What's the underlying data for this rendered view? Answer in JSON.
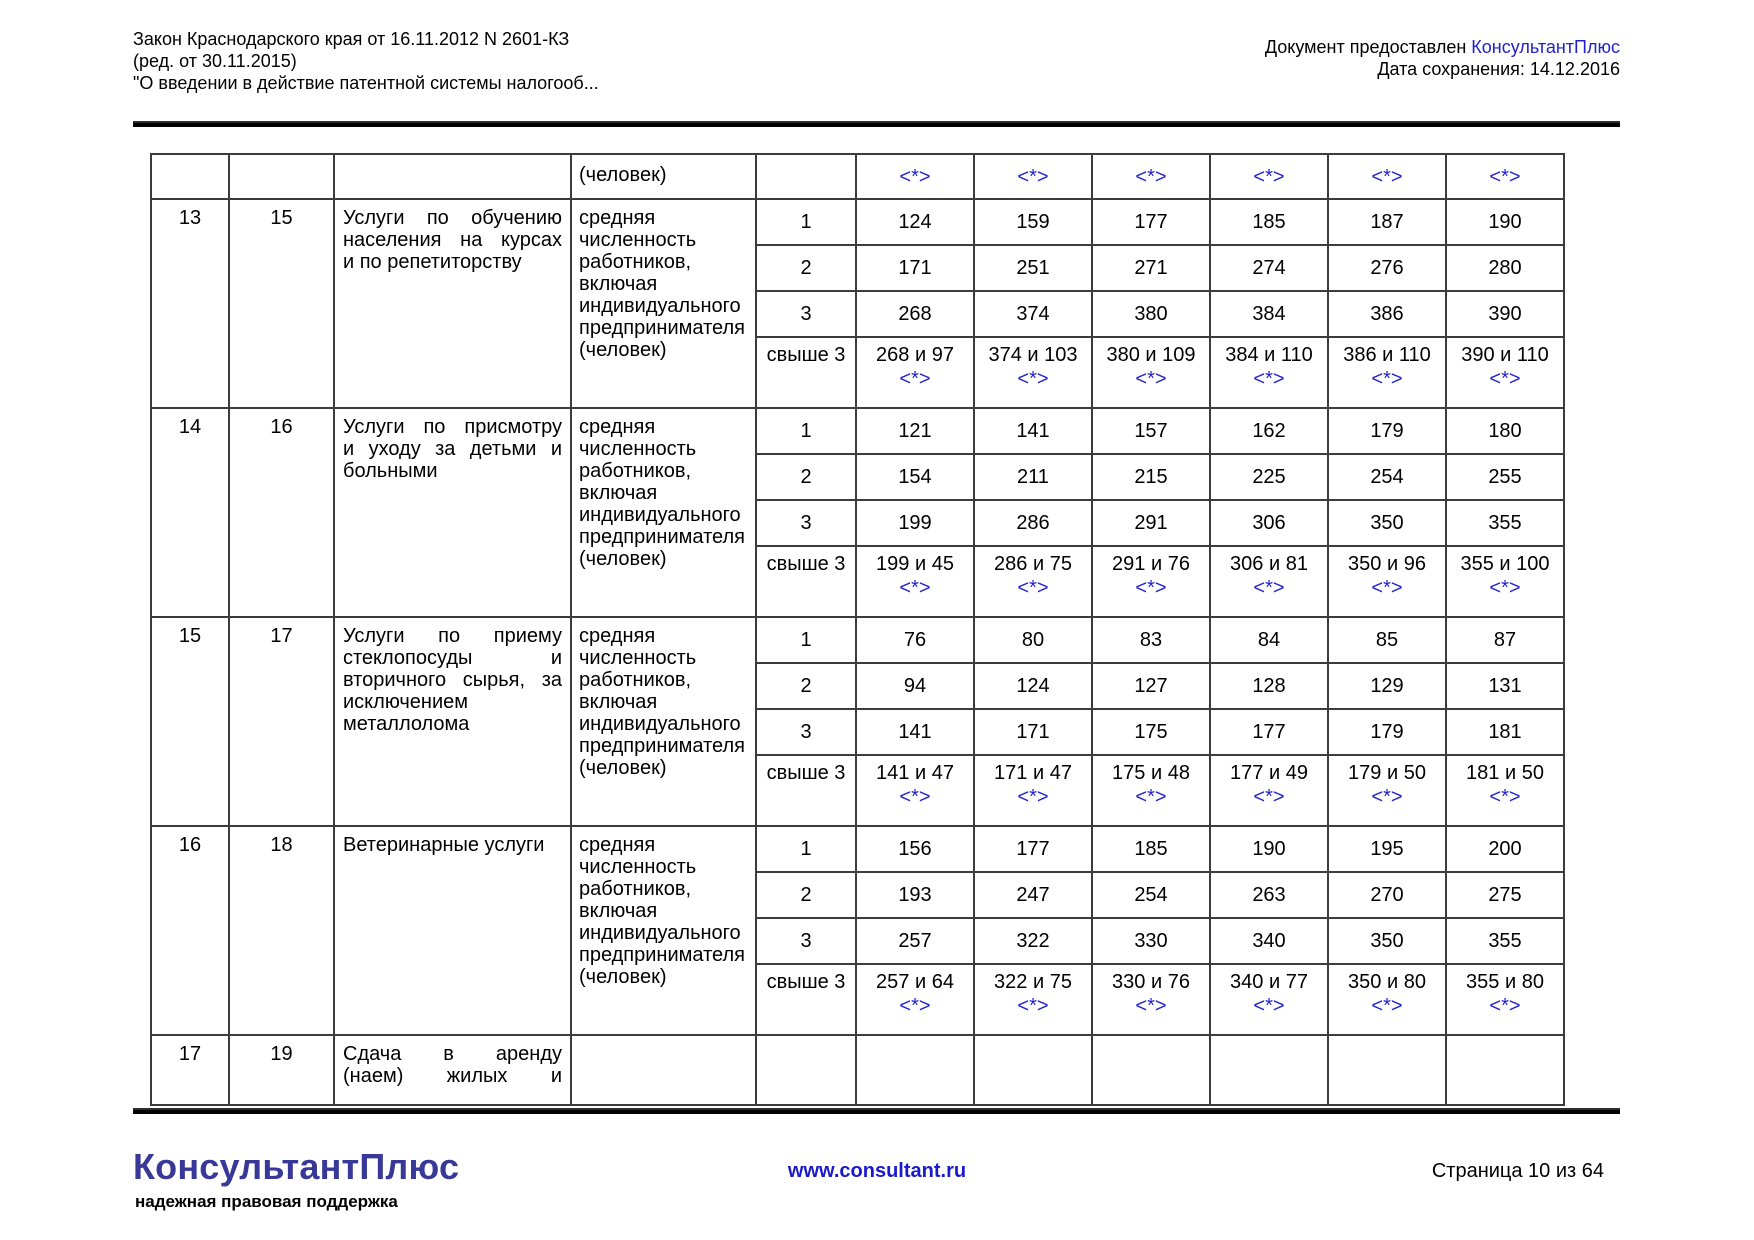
{
  "header": {
    "title_lines": [
      "Закон Краснодарского края от 16.11.2012 N 2601-КЗ",
      "(ред. от 30.11.2015)",
      "\"О введении в действие патентной системы налогооб..."
    ],
    "provided_label": "Документ предоставлен",
    "provider_link": "КонсультантПлюс",
    "save_date": "Дата сохранения: 14.12.2016"
  },
  "table": {
    "footnote_marker": "<*>",
    "value_column_count": 6,
    "continuation_row": {
      "measure_tail": "(человек)"
    },
    "subrow_labels": [
      "1",
      "2",
      "3",
      "свыше 3"
    ],
    "blocks": [
      {
        "num1": "13",
        "num2": "15",
        "service_lines": [
          "Услуги по обучению",
          "населения на курсах",
          "и по репетиторству"
        ],
        "measure": "средняя численность работников, включая индивидуального предпринимателя (человек)",
        "subrows": [
          {
            "label": "1",
            "values": [
              "124",
              "159",
              "177",
              "185",
              "187",
              "190"
            ],
            "note": false
          },
          {
            "label": "2",
            "values": [
              "171",
              "251",
              "271",
              "274",
              "276",
              "280"
            ],
            "note": false
          },
          {
            "label": "3",
            "values": [
              "268",
              "374",
              "380",
              "384",
              "386",
              "390"
            ],
            "note": false
          },
          {
            "label": "свыше 3",
            "values": [
              "268 и 97",
              "374 и 103",
              "380 и 109",
              "384 и 110",
              "386 и 110",
              "390 и 110"
            ],
            "note": true
          }
        ]
      },
      {
        "num1": "14",
        "num2": "16",
        "service_lines": [
          "Услуги по присмотру",
          "и уходу за детьми и",
          "больными"
        ],
        "measure": "средняя численность работников, включая индивидуального предпринимателя (человек)",
        "subrows": [
          {
            "label": "1",
            "values": [
              "121",
              "141",
              "157",
              "162",
              "179",
              "180"
            ],
            "note": false
          },
          {
            "label": "2",
            "values": [
              "154",
              "211",
              "215",
              "225",
              "254",
              "255"
            ],
            "note": false
          },
          {
            "label": "3",
            "values": [
              "199",
              "286",
              "291",
              "306",
              "350",
              "355"
            ],
            "note": false
          },
          {
            "label": "свыше 3",
            "values": [
              "199 и 45",
              "286 и 75",
              "291 и 76",
              "306 и 81",
              "350 и 96",
              "355 и 100"
            ],
            "note": true
          }
        ]
      },
      {
        "num1": "15",
        "num2": "17",
        "service_lines": [
          "Услуги по приему",
          "стеклопосуды и",
          "вторичного сырья, за",
          "исключением",
          "металлолома"
        ],
        "measure": "средняя численность работников, включая индивидуального предпринимателя (человек)",
        "subrows": [
          {
            "label": "1",
            "values": [
              "76",
              "80",
              "83",
              "84",
              "85",
              "87"
            ],
            "note": false
          },
          {
            "label": "2",
            "values": [
              "94",
              "124",
              "127",
              "128",
              "129",
              "131"
            ],
            "note": false
          },
          {
            "label": "3",
            "values": [
              "141",
              "171",
              "175",
              "177",
              "179",
              "181"
            ],
            "note": false
          },
          {
            "label": "свыше 3",
            "values": [
              "141 и 47",
              "171 и 47",
              "175 и 48",
              "177 и 49",
              "179 и 50",
              "181 и 50"
            ],
            "note": true
          }
        ]
      },
      {
        "num1": "16",
        "num2": "18",
        "service_lines": [
          "Ветеринарные услуги"
        ],
        "measure": "средняя численность работников, включая индивидуального предпринимателя (человек)",
        "subrows": [
          {
            "label": "1",
            "values": [
              "156",
              "177",
              "185",
              "190",
              "195",
              "200"
            ],
            "note": false
          },
          {
            "label": "2",
            "values": [
              "193",
              "247",
              "254",
              "263",
              "270",
              "275"
            ],
            "note": false
          },
          {
            "label": "3",
            "values": [
              "257",
              "322",
              "330",
              "340",
              "350",
              "355"
            ],
            "note": false
          },
          {
            "label": "свыше 3",
            "values": [
              "257 и 64",
              "322 и 75",
              "330 и 76",
              "340 и 77",
              "350 и 80",
              "355 и 80"
            ],
            "note": true
          }
        ]
      }
    ],
    "partial_row": {
      "num1": "17",
      "num2": "19",
      "service_lines": [
        "Сдача в аренду",
        "(наем) жилых и"
      ]
    }
  },
  "footer": {
    "logo": "КонсультантПлюс",
    "slogan": "надежная правовая поддержка",
    "website": "www.consultant.ru",
    "page_label": "Страница 10 из 64"
  },
  "colors": {
    "link_blue": "#2222cc",
    "logo_indigo": "#383899",
    "text": "#000000",
    "table_border": "#3c3c3c"
  }
}
